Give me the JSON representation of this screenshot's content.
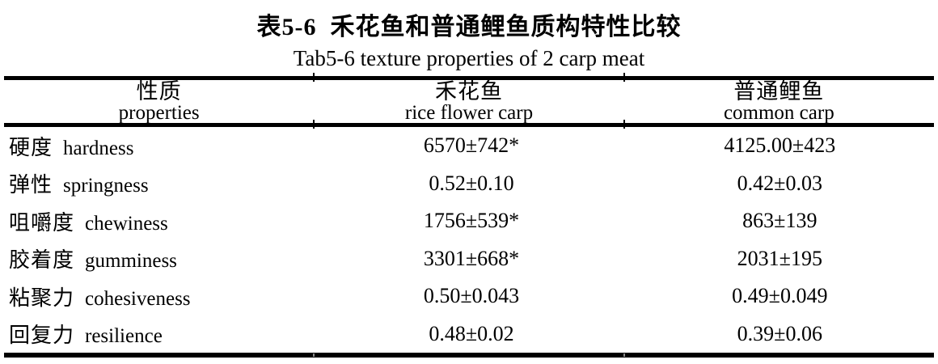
{
  "page": {
    "title_zh": "表5-6  禾花鱼和普通鲤鱼质构特性比较",
    "title_en": "Tab5-6 texture properties of 2 carp meat"
  },
  "table": {
    "columns": [
      {
        "zh": "性质",
        "en": "properties"
      },
      {
        "zh": "禾花鱼",
        "en": "rice flower carp"
      },
      {
        "zh": "普通鲤鱼",
        "en": "common carp"
      }
    ],
    "rows": [
      {
        "zh": "硬度",
        "en": "hardness",
        "rice_flower_carp": "6570±742*",
        "common_carp": "4125.00±423"
      },
      {
        "zh": "弹性",
        "en": "springness",
        "rice_flower_carp": "0.52±0.10",
        "common_carp": "0.42±0.03"
      },
      {
        "zh": "咀嚼度",
        "en": "chewiness",
        "rice_flower_carp": "1756±539*",
        "common_carp": "863±139"
      },
      {
        "zh": "胶着度",
        "en": "gumminess",
        "rice_flower_carp": "3301±668*",
        "common_carp": "2031±195"
      },
      {
        "zh": "粘聚力",
        "en": "cohesiveness",
        "rice_flower_carp": "0.50±0.043",
        "common_carp": "0.49±0.049"
      },
      {
        "zh": "回复力",
        "en": "resilience",
        "rice_flower_carp": "0.48±0.02",
        "common_carp": "0.39±0.06"
      }
    ]
  },
  "colors": {
    "text": "#000000",
    "background": "#ffffff",
    "rule": "#000000"
  }
}
